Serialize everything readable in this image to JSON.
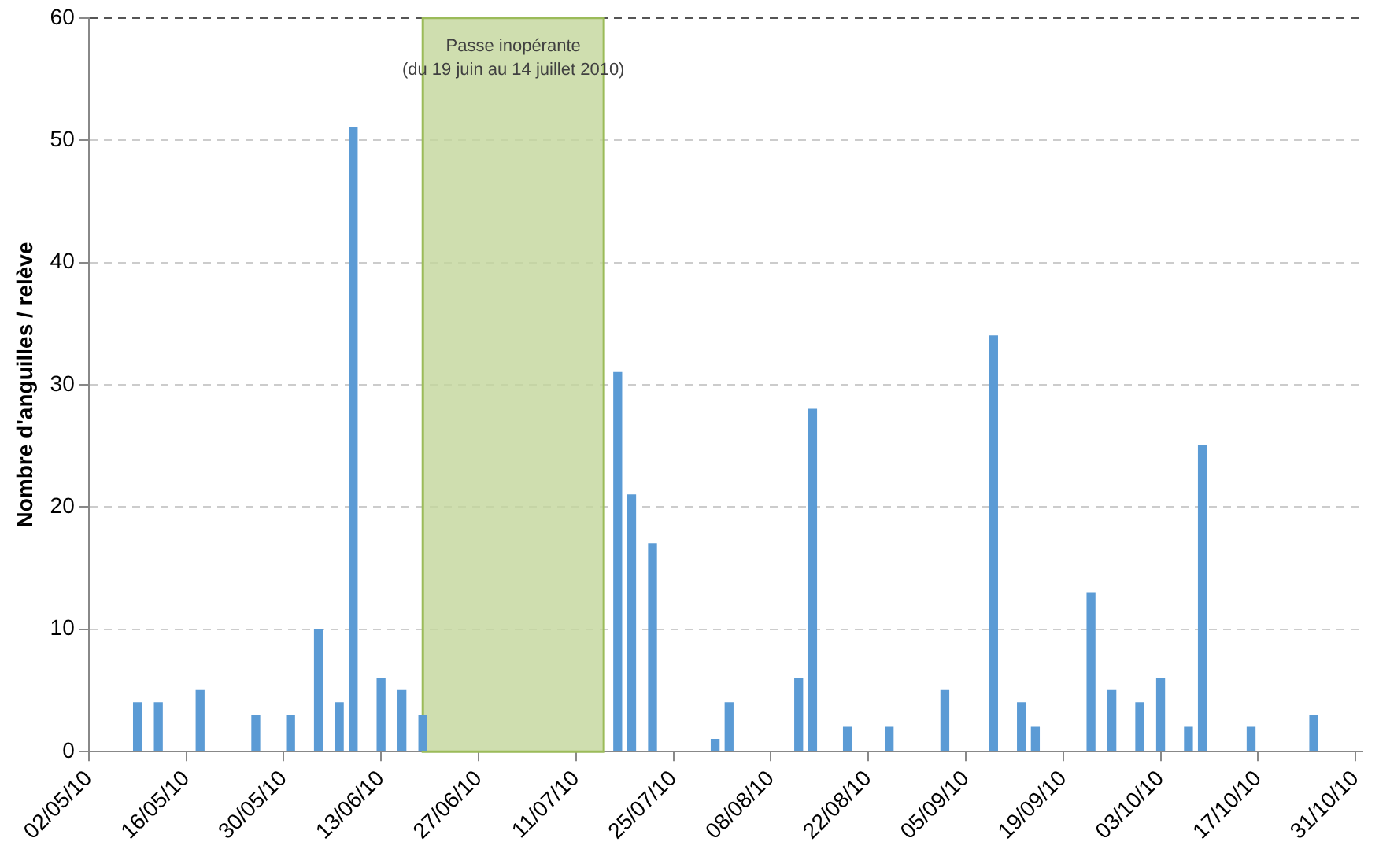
{
  "chart_data": {
    "type": "bar",
    "ylabel": "Nombre d'anguilles / relève",
    "x": [
      "2010-05-09",
      "2010-05-12",
      "2010-05-18",
      "2010-05-26",
      "2010-05-31",
      "2010-06-04",
      "2010-06-07",
      "2010-06-09",
      "2010-06-13",
      "2010-06-16",
      "2010-06-19",
      "2010-07-17",
      "2010-07-19",
      "2010-07-22",
      "2010-07-31",
      "2010-08-02",
      "2010-08-12",
      "2010-08-14",
      "2010-08-19",
      "2010-08-25",
      "2010-09-02",
      "2010-09-09",
      "2010-09-13",
      "2010-09-15",
      "2010-09-23",
      "2010-09-26",
      "2010-09-30",
      "2010-10-03",
      "2010-10-07",
      "2010-10-09",
      "2010-10-16",
      "2010-10-25"
    ],
    "values": [
      4,
      4,
      5,
      3,
      3,
      10,
      4,
      51,
      6,
      5,
      3,
      31,
      21,
      17,
      1,
      4,
      6,
      28,
      2,
      2,
      5,
      34,
      4,
      2,
      13,
      5,
      4,
      6,
      2,
      25,
      2,
      3
    ],
    "color": "#5b9bd5",
    "xlim": [
      "2010-05-02",
      "2010-11-01"
    ],
    "xticks": [
      {
        "value": "2010-05-02",
        "label": "02/05/10"
      },
      {
        "value": "2010-05-16",
        "label": "16/05/10"
      },
      {
        "value": "2010-05-30",
        "label": "30/05/10"
      },
      {
        "value": "2010-06-13",
        "label": "13/06/10"
      },
      {
        "value": "2010-06-27",
        "label": "27/06/10"
      },
      {
        "value": "2010-07-11",
        "label": "11/07/10"
      },
      {
        "value": "2010-07-25",
        "label": "25/07/10"
      },
      {
        "value": "2010-08-08",
        "label": "08/08/10"
      },
      {
        "value": "2010-08-22",
        "label": "22/08/10"
      },
      {
        "value": "2010-09-05",
        "label": "05/09/10"
      },
      {
        "value": "2010-09-19",
        "label": "19/09/10"
      },
      {
        "value": "2010-10-03",
        "label": "03/10/10"
      },
      {
        "value": "2010-10-17",
        "label": "17/10/10"
      },
      {
        "value": "2010-10-31",
        "label": "31/10/10"
      }
    ],
    "ylim": [
      0,
      60
    ],
    "yticks": [
      0,
      10,
      20,
      30,
      40,
      50,
      60
    ],
    "grid": "y",
    "legend": false,
    "bands": [
      {
        "axis": "x",
        "from": "2010-06-19",
        "to": "2010-07-15",
        "label": [
          "Passe inopérante",
          "(du 19 juin au 14 juillet 2010)"
        ],
        "color": "#c3d69b"
      }
    ]
  }
}
